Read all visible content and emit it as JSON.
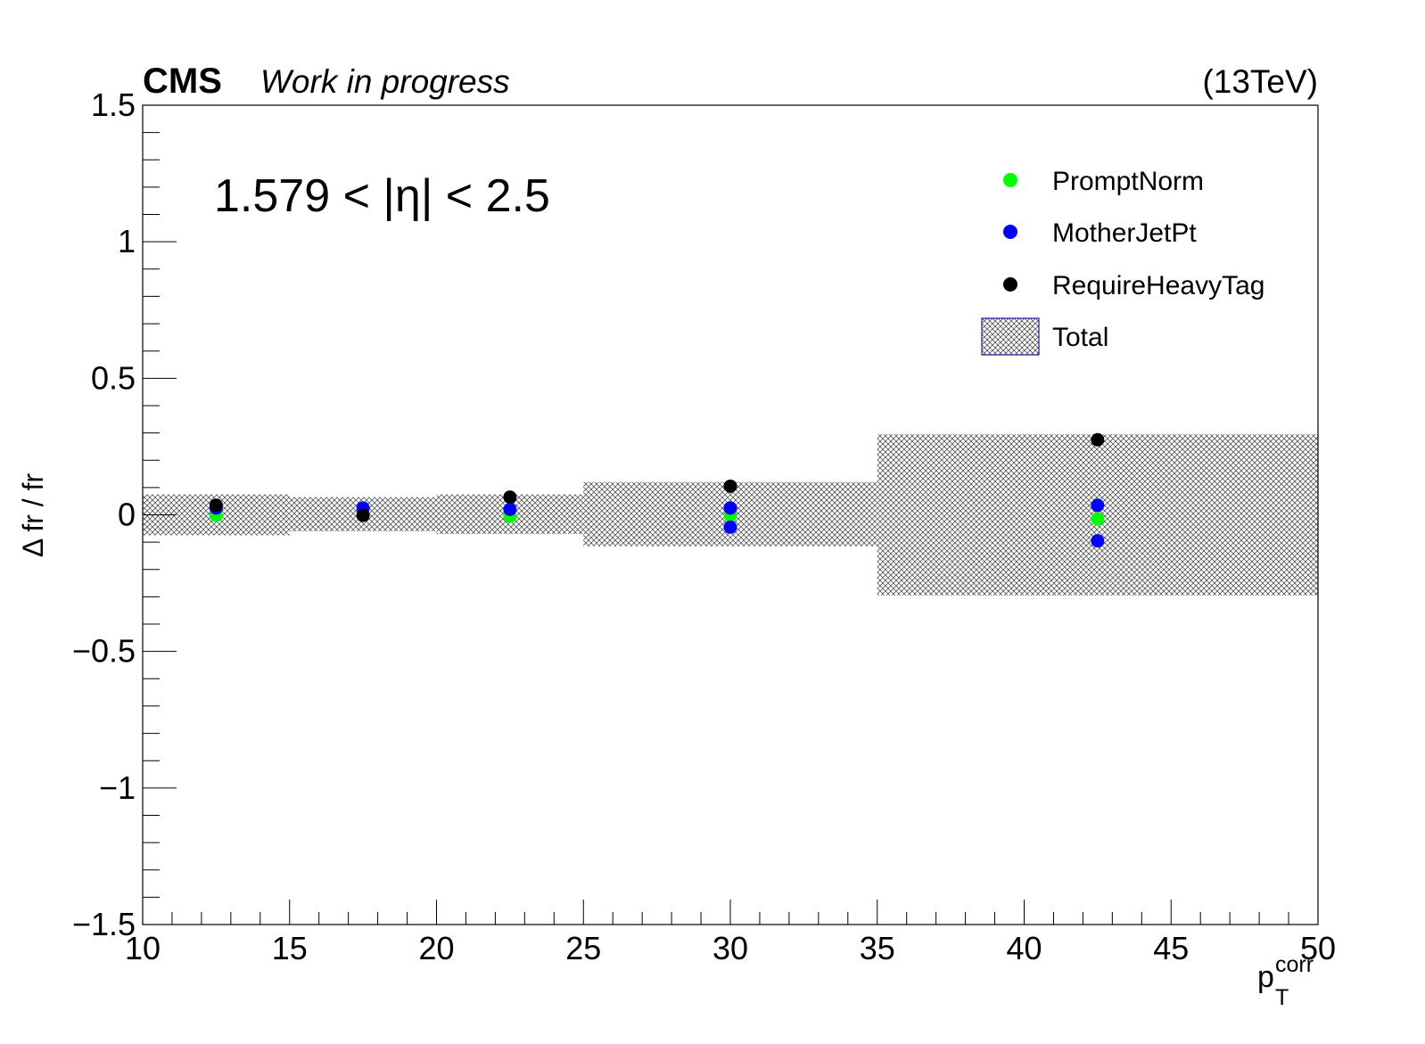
{
  "header": {
    "experiment": "CMS",
    "status": "Work in progress",
    "energy": "(13TeV)"
  },
  "region_label": "1.579 < |η| < 2.5",
  "axes": {
    "xlabel_main": "p",
    "xlabel_sub": "T",
    "xlabel_sup": "corr",
    "ylabel": "Δ fr / fr"
  },
  "legend": {
    "items": [
      {
        "label": "PromptNorm",
        "kind": "marker",
        "color": "#00ff00"
      },
      {
        "label": "MotherJetPt",
        "kind": "marker",
        "color": "#0000ff"
      },
      {
        "label": "RequireHeavyTag",
        "kind": "marker",
        "color": "#000000"
      },
      {
        "label": "Total",
        "kind": "band",
        "color": "#888888"
      }
    ]
  },
  "chart_data": {
    "type": "scatter",
    "xlim": [
      10,
      50
    ],
    "ylim": [
      -1.5,
      1.5
    ],
    "x_ticks": [
      10,
      15,
      20,
      25,
      30,
      35,
      40,
      45,
      50
    ],
    "x_tick_labels": [
      "10",
      "15",
      "20",
      "25",
      "30",
      "35",
      "40",
      "45",
      "50"
    ],
    "y_ticks": [
      -1.5,
      -1,
      -0.5,
      0,
      0.5,
      1,
      1.5
    ],
    "y_tick_labels": [
      "−1.5",
      "−1",
      "−0.5",
      "0",
      "0.5",
      "1",
      "1.5"
    ],
    "grid": false,
    "legend_position": "top-right",
    "band": {
      "name": "Total",
      "bins": [
        {
          "x_low": 10,
          "x_high": 15,
          "low": -0.075,
          "high": 0.075
        },
        {
          "x_low": 15,
          "x_high": 20,
          "low": -0.06,
          "high": 0.065
        },
        {
          "x_low": 20,
          "x_high": 25,
          "low": -0.07,
          "high": 0.075
        },
        {
          "x_low": 25,
          "x_high": 35,
          "low": -0.115,
          "high": 0.12
        },
        {
          "x_low": 35,
          "x_high": 50,
          "low": -0.295,
          "high": 0.295
        }
      ]
    },
    "series": [
      {
        "name": "PromptNorm",
        "color": "#00ff00",
        "x": [
          12.5,
          17.5,
          22.5,
          30,
          42.5
        ],
        "y": [
          -0.002,
          0.002,
          -0.005,
          -0.002,
          -0.015
        ]
      },
      {
        "name": "MotherJetPt",
        "color": "#0000ff",
        "x": [
          12.5,
          17.5,
          22.5,
          30,
          30,
          42.5,
          42.5
        ],
        "y": [
          0.025,
          0.025,
          0.02,
          0.025,
          -0.045,
          0.035,
          -0.095
        ]
      },
      {
        "name": "RequireHeavyTag",
        "color": "#000000",
        "x": [
          12.5,
          17.5,
          22.5,
          30,
          42.5
        ],
        "y": [
          0.035,
          -0.002,
          0.065,
          0.105,
          0.275
        ]
      }
    ]
  }
}
